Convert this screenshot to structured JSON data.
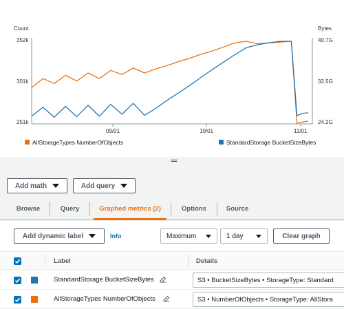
{
  "chart": {
    "left_axis_title": "Count",
    "right_axis_title": "Bytes",
    "left_ticks": [
      "352k",
      "301k",
      "251k"
    ],
    "right_ticks": [
      "40.7G",
      "32.5G",
      "24.2G"
    ],
    "x_ticks": [
      "09/01",
      "10/01",
      "11/01"
    ],
    "legend": [
      {
        "label": "AllStorageTypes NumberOfObjects",
        "color": "#ec7211"
      },
      {
        "label": "StandardStorage BucketSizeBytes",
        "color": "#1f77b4"
      }
    ]
  },
  "chart_data": {
    "type": "line",
    "x": [
      "08/01",
      "08/05",
      "08/09",
      "08/13",
      "08/17",
      "08/21",
      "08/25",
      "08/29",
      "09/02",
      "09/06",
      "09/10",
      "09/14",
      "09/18",
      "09/22",
      "09/26",
      "09/30",
      "10/04",
      "10/08",
      "10/12",
      "10/16",
      "10/20",
      "10/24",
      "10/28",
      "11/01",
      "11/03",
      "11/05",
      "11/07"
    ],
    "series": [
      {
        "name": "AllStorageTypes NumberOfObjects",
        "axis": "left",
        "color": "#ec7211",
        "values": [
          295000,
          306000,
          300000,
          310000,
          303000,
          313000,
          306000,
          316000,
          311000,
          319000,
          313000,
          318000,
          322000,
          327000,
          331000,
          336000,
          340000,
          345000,
          350000,
          352000,
          349000,
          350000,
          351000,
          352000,
          251000,
          252500,
          253500
        ]
      },
      {
        "name": "StandardStorage BucketSizeBytes",
        "axis": "right",
        "color": "#1f77b4",
        "values": [
          25600000000,
          27400000000,
          25400000000,
          27600000000,
          25500000000,
          27800000000,
          25600000000,
          28000000000,
          26000000000,
          28200000000,
          25800000000,
          27200000000,
          28800000000,
          30300000000,
          31800000000,
          33400000000,
          35000000000,
          36500000000,
          38000000000,
          39400000000,
          40000000000,
          40400000000,
          40700000000,
          40700000000,
          25700000000,
          26200000000,
          26300000000
        ]
      }
    ],
    "ylabel_left": "Count",
    "ylabel_right": "Bytes",
    "ylim_left": [
      251000,
      352000
    ],
    "ylim_right": [
      24200000000,
      40700000000
    ],
    "grid": false,
    "legend_position": "bottom"
  },
  "toolbar": {
    "add_math_label": "Add math",
    "add_query_label": "Add query"
  },
  "tabs": [
    {
      "label": "Browse"
    },
    {
      "label": "Query"
    },
    {
      "label": "Graphed metrics (2)"
    },
    {
      "label": "Options"
    },
    {
      "label": "Source"
    }
  ],
  "controls": {
    "dynamic_label": "Add dynamic label",
    "info": "Info",
    "statistic": "Maximum",
    "period": "1 day",
    "clear_graph": "Clear graph"
  },
  "table": {
    "col_label": "Label",
    "col_details": "Details",
    "rows": [
      {
        "label": "StandardStorage BucketSizeBytes",
        "details": "S3 • BucketSizeBytes • StorageType: Standard",
        "color": "#1f77b4"
      },
      {
        "label": "AllStorageTypes NumberOfObjects",
        "details": "S3 • NumberOfObjects • StorageType: AllStora",
        "color": "#ec7211"
      }
    ]
  }
}
